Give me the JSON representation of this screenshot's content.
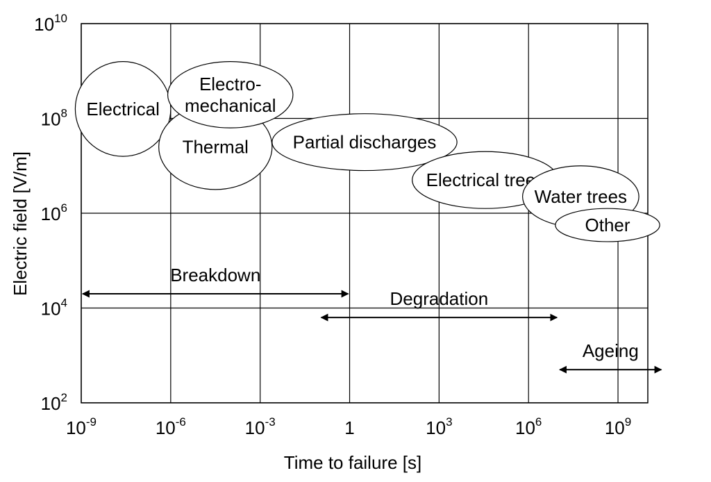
{
  "chart_data": {
    "type": "diagram",
    "title": "",
    "xlabel": "Time to failure [s]",
    "ylabel": "Electric field [V/m]",
    "x_scale": "log",
    "y_scale": "log",
    "xlim_log10": [
      -9,
      10
    ],
    "ylim_log10": [
      2,
      10
    ],
    "grid": true,
    "x_ticks": [
      {
        "value": -9,
        "base": "10",
        "exp": "-9"
      },
      {
        "value": -6,
        "base": "10",
        "exp": "-6"
      },
      {
        "value": -3,
        "base": "10",
        "exp": "-3"
      },
      {
        "value": 0,
        "base": "1",
        "exp": ""
      },
      {
        "value": 3,
        "base": "10",
        "exp": "3"
      },
      {
        "value": 6,
        "base": "10",
        "exp": "6"
      },
      {
        "value": 9,
        "base": "10",
        "exp": "9"
      }
    ],
    "y_ticks": [
      {
        "value": 2,
        "base": "10",
        "exp": "2"
      },
      {
        "value": 4,
        "base": "10",
        "exp": "4"
      },
      {
        "value": 6,
        "base": "10",
        "exp": "6"
      },
      {
        "value": 8,
        "base": "10",
        "exp": "8"
      },
      {
        "value": 10,
        "base": "10",
        "exp": "10"
      }
    ],
    "regions": [
      {
        "label": [
          "Electrical"
        ],
        "x_log10": [
          -9.2,
          -6.0
        ],
        "y_log10": [
          7.2,
          9.2
        ]
      },
      {
        "label": [
          "Thermal"
        ],
        "x_log10": [
          -6.4,
          -2.6
        ],
        "y_log10": [
          6.5,
          8.3
        ]
      },
      {
        "label": [
          "Electro-",
          "mechanical"
        ],
        "x_log10": [
          -6.1,
          -1.9
        ],
        "y_log10": [
          7.8,
          9.2
        ]
      },
      {
        "label": [
          "Partial discharges"
        ],
        "x_log10": [
          -2.6,
          3.6
        ],
        "y_log10": [
          6.9,
          8.1
        ]
      },
      {
        "label": [
          "Electrical trees"
        ],
        "x_log10": [
          2.1,
          7.0
        ],
        "y_log10": [
          6.1,
          7.3
        ]
      },
      {
        "label": [
          "Water trees"
        ],
        "x_log10": [
          5.8,
          9.7
        ],
        "y_log10": [
          5.7,
          7.0
        ]
      },
      {
        "label": [
          "Other"
        ],
        "x_log10": [
          6.9,
          10.4
        ],
        "y_log10": [
          5.4,
          6.1
        ]
      }
    ],
    "ranges": [
      {
        "label": "Breakdown",
        "x_log10": [
          -9,
          0
        ],
        "y_log10": 4.3
      },
      {
        "label": "Degradation",
        "x_log10": [
          -1,
          7
        ],
        "y_log10": 3.8
      },
      {
        "label": "Ageing",
        "x_log10": [
          7,
          10.5
        ],
        "y_log10": 2.7
      }
    ]
  }
}
